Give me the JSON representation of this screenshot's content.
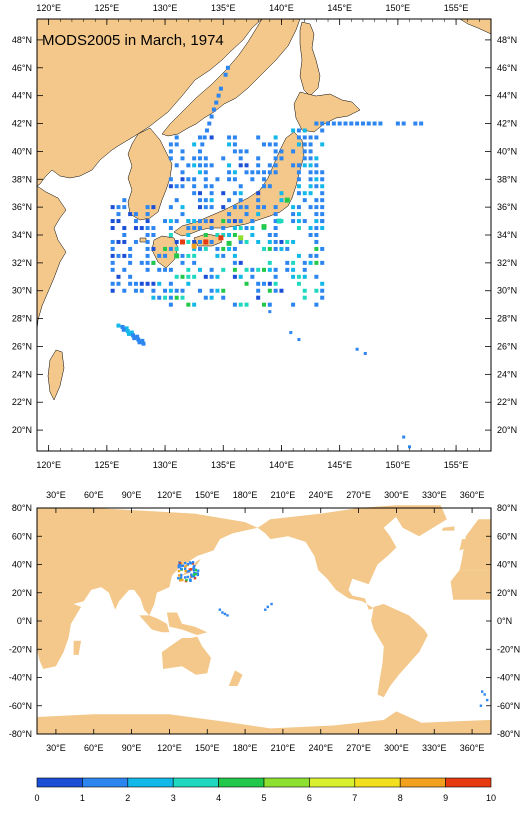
{
  "title": "MODS2005 in March, 1974",
  "colors": {
    "land": "#f3c88a",
    "ocean": "#ffffff",
    "frame": "#000000",
    "scale": [
      "#1a4fd6",
      "#2d86f0",
      "#12b8e8",
      "#20d8c0",
      "#22c84a",
      "#8ee030",
      "#d8f030",
      "#f2e020",
      "#f2a020",
      "#e83a10"
    ]
  },
  "regional_map": {
    "lon_range": [
      119,
      158
    ],
    "lat_range": [
      18.5,
      49.5
    ],
    "top_lon_ticks": [
      "120°E",
      "125°E",
      "130°E",
      "135°E",
      "140°E",
      "145°E",
      "150°E",
      "155°E"
    ],
    "bottom_lon_ticks": [
      "120°E",
      "125°E",
      "130°E",
      "135°E",
      "140°E",
      "145°E",
      "150°E",
      "155°E"
    ],
    "lat_ticks": [
      "48°N",
      "46°N",
      "44°N",
      "42°N",
      "40°N",
      "38°N",
      "36°N",
      "34°N",
      "32°N",
      "30°N",
      "28°N",
      "26°N",
      "24°N",
      "22°N",
      "20°N"
    ]
  },
  "global_map": {
    "lon_range": [
      15,
      375
    ],
    "lat_range": [
      -80,
      80
    ],
    "lon_ticks": [
      "30°E",
      "60°E",
      "90°E",
      "120°E",
      "150°E",
      "180°E",
      "210°E",
      "240°E",
      "270°E",
      "300°E",
      "330°E",
      "360°E"
    ],
    "lat_ticks": [
      "80°N",
      "60°N",
      "40°N",
      "20°N",
      "0°N",
      "-20°N",
      "-40°N",
      "-60°N",
      "-80°N"
    ]
  },
  "colorbar": {
    "labels": [
      "0",
      "1",
      "2",
      "3",
      "4",
      "5",
      "6",
      "7",
      "8",
      "9",
      "10"
    ]
  }
}
